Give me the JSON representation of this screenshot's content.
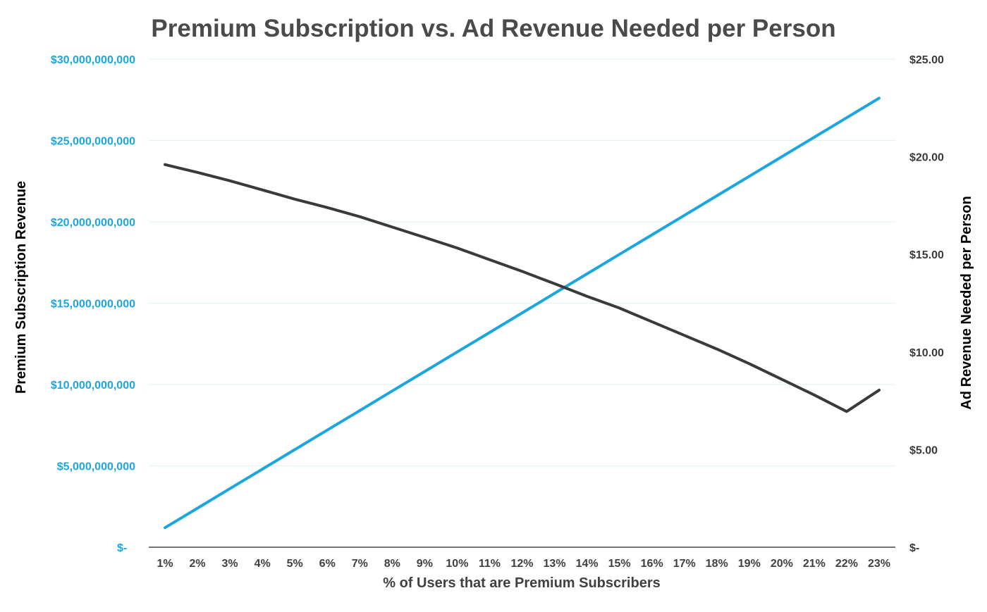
{
  "chart_data": {
    "type": "line",
    "title": "Premium Subscription vs. Ad Revenue Needed per Person",
    "xlabel": "% of Users that are Premium Subscribers",
    "ylabel_left": "Premium Subscription Revenue",
    "ylabel_right": "Ad Revenue Needed per Person",
    "categories": [
      "1%",
      "2%",
      "3%",
      "4%",
      "5%",
      "6%",
      "7%",
      "8%",
      "9%",
      "10%",
      "11%",
      "12%",
      "13%",
      "14%",
      "15%",
      "16%",
      "17%",
      "18%",
      "19%",
      "20%",
      "21%",
      "22%",
      "23%"
    ],
    "left_axis": {
      "min": 0,
      "max": 30000000000,
      "ticks": [
        0,
        5000000000,
        10000000000,
        15000000000,
        20000000000,
        25000000000,
        30000000000
      ],
      "tick_labels": [
        "$-",
        "$5,000,000,000",
        "$10,000,000,000",
        "$15,000,000,000",
        "$20,000,000,000",
        "$25,000,000,000",
        "$30,000,000,000"
      ]
    },
    "right_axis": {
      "min": 0,
      "max": 25,
      "ticks": [
        0,
        5,
        10,
        15,
        20,
        25
      ],
      "tick_labels": [
        "$-",
        "$5.00",
        "$10.00",
        "$15.00",
        "$20.00",
        "$25.00"
      ]
    },
    "series": [
      {
        "axis": "left",
        "color": "#1ba6e0",
        "values": [
          1200000000,
          2400000000,
          3600000000,
          4800000000,
          6000000000,
          7200000000,
          8400000000,
          9600000000,
          10800000000,
          12000000000,
          13200000000,
          14400000000,
          15600000000,
          16800000000,
          18000000000,
          19200000000,
          20400000000,
          21600000000,
          22800000000,
          24000000000,
          25200000000,
          26400000000,
          27600000000
        ]
      },
      {
        "axis": "right",
        "color": "#3a3a3a",
        "values": [
          19.6,
          19.2,
          18.77,
          18.3,
          17.83,
          17.4,
          16.93,
          16.4,
          15.87,
          15.33,
          14.73,
          14.13,
          13.5,
          12.85,
          12.25,
          11.55,
          10.85,
          10.15,
          9.4,
          8.6,
          7.8,
          6.95,
          8.05
        ]
      }
    ],
    "grid": true,
    "legend": "none"
  },
  "colors": {
    "left_axis": "#1ba6e0",
    "right_axis": "#3a3a3a",
    "grid": "#dff3f6"
  }
}
